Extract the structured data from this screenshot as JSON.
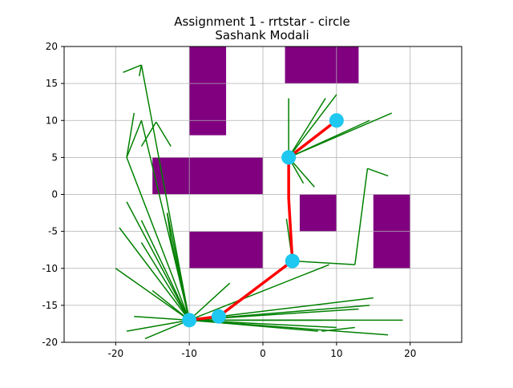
{
  "chart_data": {
    "type": "scatter",
    "title": "Assignment 1 - rrtstar - circle",
    "subtitle": "Sashank Modali",
    "xlabel": "",
    "ylabel": "",
    "xlim": [
      -27,
      27
    ],
    "ylim": [
      -20,
      20
    ],
    "xticks": [
      -20,
      -10,
      0,
      10,
      20
    ],
    "yticks": [
      -20,
      -15,
      -10,
      -5,
      0,
      5,
      10,
      15,
      20
    ],
    "grid": true,
    "obstacles": [
      {
        "x0": -10,
        "x1": -5,
        "y0": 8,
        "y1": 20
      },
      {
        "x0": 3,
        "x1": 13,
        "y0": 15,
        "y1": 20
      },
      {
        "x0": -15,
        "x1": 0,
        "y0": 0,
        "y1": 5
      },
      {
        "x0": 5,
        "x1": 10,
        "y0": -5,
        "y1": 0
      },
      {
        "x0": 15,
        "x1": 20,
        "y0": -10,
        "y1": 0
      },
      {
        "x0": -10,
        "x1": 0,
        "y0": -10,
        "y1": -5
      }
    ],
    "obstacle_color": "#800080",
    "tree_color": "#008000",
    "path_color": "#ff0000",
    "node_color": "#1ec8f0",
    "tree_edges": [
      [
        -10,
        -17,
        -16.5,
        17.5
      ],
      [
        -10,
        -17,
        -16.5,
        10
      ],
      [
        -10,
        -17,
        -18.5,
        5
      ],
      [
        -10,
        -17,
        -16.5,
        -3.5
      ],
      [
        -10,
        -17,
        -18.5,
        -1
      ],
      [
        -10,
        -17,
        -19.5,
        -4.5
      ],
      [
        -10,
        -17,
        -16.5,
        -6.5
      ],
      [
        -10,
        -17,
        -13,
        -2.5
      ],
      [
        -10,
        -17,
        -12.5,
        -6
      ],
      [
        -10,
        -17,
        -20,
        -10
      ],
      [
        -10,
        -17,
        -15,
        -13
      ],
      [
        -10,
        -17,
        -16,
        -19.5
      ],
      [
        -10,
        -17,
        -18.5,
        -18.5
      ],
      [
        -10,
        -17,
        -17.5,
        -16.5
      ],
      [
        -10,
        -17,
        -4.5,
        -12
      ],
      [
        -10,
        -17,
        9,
        -9.5
      ],
      [
        -10,
        -17,
        13,
        -15.5
      ],
      [
        -10,
        -17,
        15,
        -14
      ],
      [
        -10,
        -17,
        14.5,
        -15
      ],
      [
        -10,
        -17,
        19,
        -17
      ],
      [
        -10,
        -17,
        17,
        -19
      ],
      [
        -10,
        -17,
        8,
        -17
      ],
      [
        -10,
        -17,
        10,
        -18
      ],
      [
        -10,
        -17,
        10,
        -17
      ],
      [
        -10,
        -17,
        7.5,
        -18.5
      ],
      [
        -16.5,
        17.5,
        -19,
        16.5
      ],
      [
        -16.5,
        17.5,
        -16.8,
        16
      ],
      [
        -18.5,
        5,
        -17.5,
        11
      ],
      [
        -18.5,
        5,
        -16.5,
        10
      ],
      [
        -16.5,
        6.5,
        -14.5,
        9.8
      ],
      [
        -14.5,
        9.8,
        -12.5,
        6.5
      ],
      [
        -13,
        -2.5,
        -12.5,
        -6
      ],
      [
        4,
        -9,
        3.2,
        -3.3
      ],
      [
        4,
        -9,
        12.5,
        -9.5
      ],
      [
        12.5,
        -9.5,
        14.2,
        3.5
      ],
      [
        14.2,
        3.5,
        17,
        2.5
      ],
      [
        8,
        -18.5,
        12.5,
        -18
      ],
      [
        3.5,
        5,
        3.5,
        13
      ],
      [
        3.5,
        5,
        8.5,
        13
      ],
      [
        3.5,
        5,
        10,
        13.5
      ],
      [
        3.5,
        5,
        17.5,
        11
      ],
      [
        3.5,
        5,
        14.5,
        10
      ],
      [
        3.5,
        5,
        7,
        1
      ],
      [
        3.5,
        5,
        5.5,
        1.5
      ]
    ],
    "path": [
      {
        "x": 10,
        "y": 10
      },
      {
        "x": 3.5,
        "y": 5
      },
      {
        "x": 3.5,
        "y": -0.5
      },
      {
        "x": 4,
        "y": -9
      },
      {
        "x": -6,
        "y": -16.5
      },
      {
        "x": -10,
        "y": -17
      }
    ],
    "nodes": [
      {
        "x": 10,
        "y": 10
      },
      {
        "x": 3.5,
        "y": 5
      },
      {
        "x": 4,
        "y": -9
      },
      {
        "x": -6,
        "y": -16.5
      },
      {
        "x": -10,
        "y": -17
      }
    ]
  }
}
